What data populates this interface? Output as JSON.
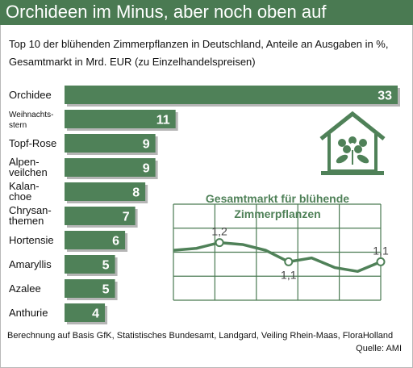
{
  "header": {
    "title": "Orchideen im Minus, aber noch oben auf",
    "subtitle": "Top 10 der blühenden Zimmerpflanzen in Deutschland, Anteile an Ausgaben in %, Gesamtmarkt in Mrd. EUR (zu Einzelhandelspreisen)"
  },
  "footer": {
    "note": "Berechnung auf Basis GfK, Statistisches Bundesamt, Landgard, Veiling Rhein-Maas, FloraHolland",
    "source": "Quelle: AMI"
  },
  "icon": "greenhouse-flower-icon",
  "colors": {
    "bar": "#4f8158",
    "bar_shadow": "#b5b5b5",
    "header": "#4a7a52",
    "line": "#4f8158",
    "grid": "#4a7a52"
  },
  "chart_data": [
    {
      "type": "bar",
      "orientation": "horizontal",
      "categories": [
        [
          "Orchidee"
        ],
        [
          "Weihnachts-",
          "stern"
        ],
        [
          "Topf-Rose"
        ],
        [
          "Alpen-",
          "veilchen"
        ],
        [
          "Kalan-",
          "choe"
        ],
        [
          "Chrysan-",
          "themen"
        ],
        [
          "Hortensie"
        ],
        [
          "Amaryllis"
        ],
        [
          "Azalee"
        ],
        [
          "Anthurie"
        ]
      ],
      "values": [
        33,
        11,
        9,
        9,
        8,
        7,
        6,
        5,
        5,
        4
      ],
      "data_labels": true
    },
    {
      "type": "line",
      "title": "Gesamtmarkt für blühende Zimmerpflanzen",
      "values": [
        1.16,
        1.17,
        1.2,
        1.19,
        1.16,
        1.1,
        1.12,
        1.07,
        1.05,
        1.1
      ],
      "labeled_points": [
        {
          "index": 2,
          "label": "1,2"
        },
        {
          "index": 5,
          "label": "1,1"
        },
        {
          "index": 9,
          "label": "1,1"
        }
      ],
      "ylim": [
        0.9,
        1.4
      ],
      "grid": true
    }
  ]
}
